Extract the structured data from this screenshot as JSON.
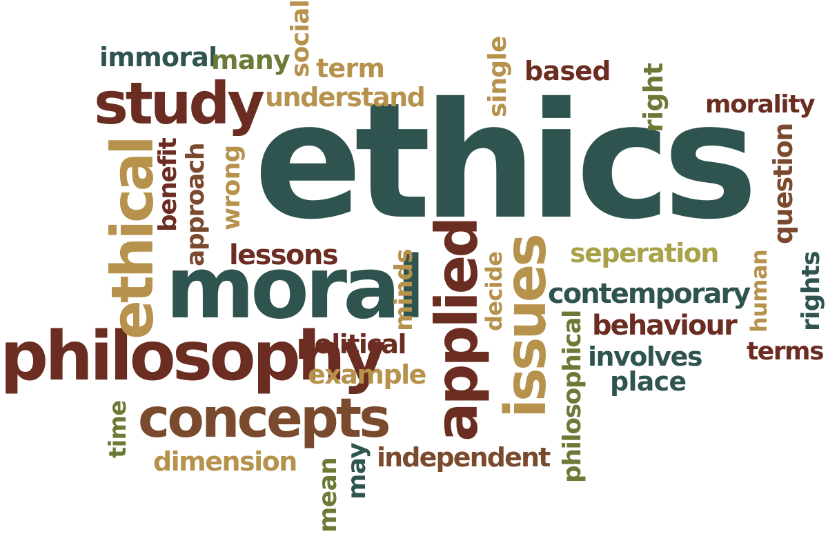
{
  "palette": {
    "dark_teal": "#2f5450",
    "maroon": "#6b2c21",
    "tan": "#b6924c",
    "olive": "#6b7a37",
    "olive_gold": "#a8a24a",
    "brown": "#7a4a2e"
  },
  "words": {
    "ethics": "ethics",
    "moral": "moral",
    "philosophy": "philosophy",
    "study": "study",
    "concepts": "concepts",
    "applied": "applied",
    "issues": "issues",
    "ethical": "ethical",
    "immoral": "immoral",
    "many": "many",
    "social": "social",
    "term": "term",
    "understand": "understand",
    "single": "single",
    "based": "based",
    "right": "right",
    "morality": "morality",
    "question": "question",
    "benefit": "benefit",
    "approach": "approach",
    "wrong": "wrong",
    "lessons": "lessons",
    "minds": "minds",
    "decide": "decide",
    "seperation": "seperation",
    "human": "human",
    "rights": "rights",
    "contemporary": "contemporary",
    "behaviour": "behaviour",
    "terms": "terms",
    "political": "political",
    "involves": "involves",
    "place": "place",
    "example": "example",
    "philosophical": "philosophical",
    "time": "time",
    "dimension": "dimension",
    "mean": "mean",
    "may": "may",
    "independent": "independent"
  }
}
